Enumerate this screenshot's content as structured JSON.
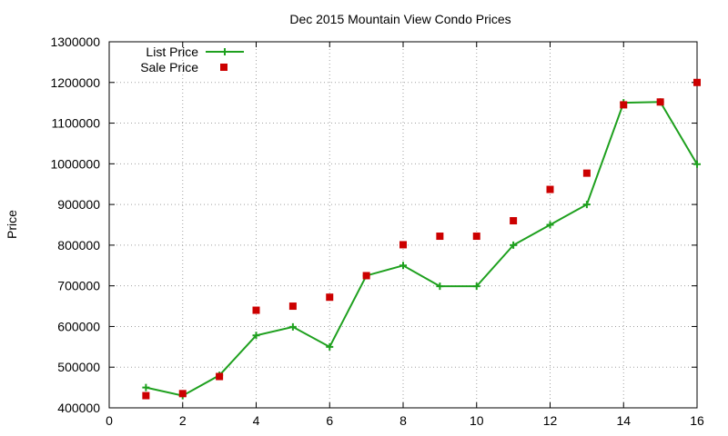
{
  "chart_data": {
    "type": "line",
    "title": "Dec 2015 Mountain View Condo Prices",
    "xlabel": "",
    "ylabel": "Price",
    "xlim": [
      0,
      16
    ],
    "ylim": [
      400000,
      1300000
    ],
    "x_ticks": [
      0,
      2,
      4,
      6,
      8,
      10,
      12,
      14,
      16
    ],
    "y_ticks": [
      400000,
      500000,
      600000,
      700000,
      800000,
      900000,
      1000000,
      1100000,
      1200000,
      1300000
    ],
    "grid": true,
    "legend_position": "top-left",
    "series": [
      {
        "name": "List Price",
        "style": "line-with-plus-markers",
        "color": "#1ea01e",
        "x": [
          1,
          2,
          3,
          4,
          5,
          6,
          7,
          8,
          9,
          10,
          11,
          12,
          13,
          14,
          15,
          16
        ],
        "values": [
          450000,
          430000,
          480000,
          578000,
          599000,
          550000,
          725000,
          750000,
          699000,
          699000,
          800000,
          850000,
          900000,
          1150000,
          1152000,
          999000
        ]
      },
      {
        "name": "Sale Price",
        "style": "square-markers",
        "color": "#cc0000",
        "x": [
          1,
          2,
          3,
          4,
          5,
          6,
          7,
          8,
          9,
          10,
          11,
          12,
          13,
          14,
          15,
          16
        ],
        "values": [
          430000,
          435000,
          477000,
          640000,
          650000,
          672000,
          725000,
          801000,
          822000,
          822000,
          860000,
          937000,
          977000,
          1145000,
          1152000,
          1200000
        ]
      }
    ]
  }
}
